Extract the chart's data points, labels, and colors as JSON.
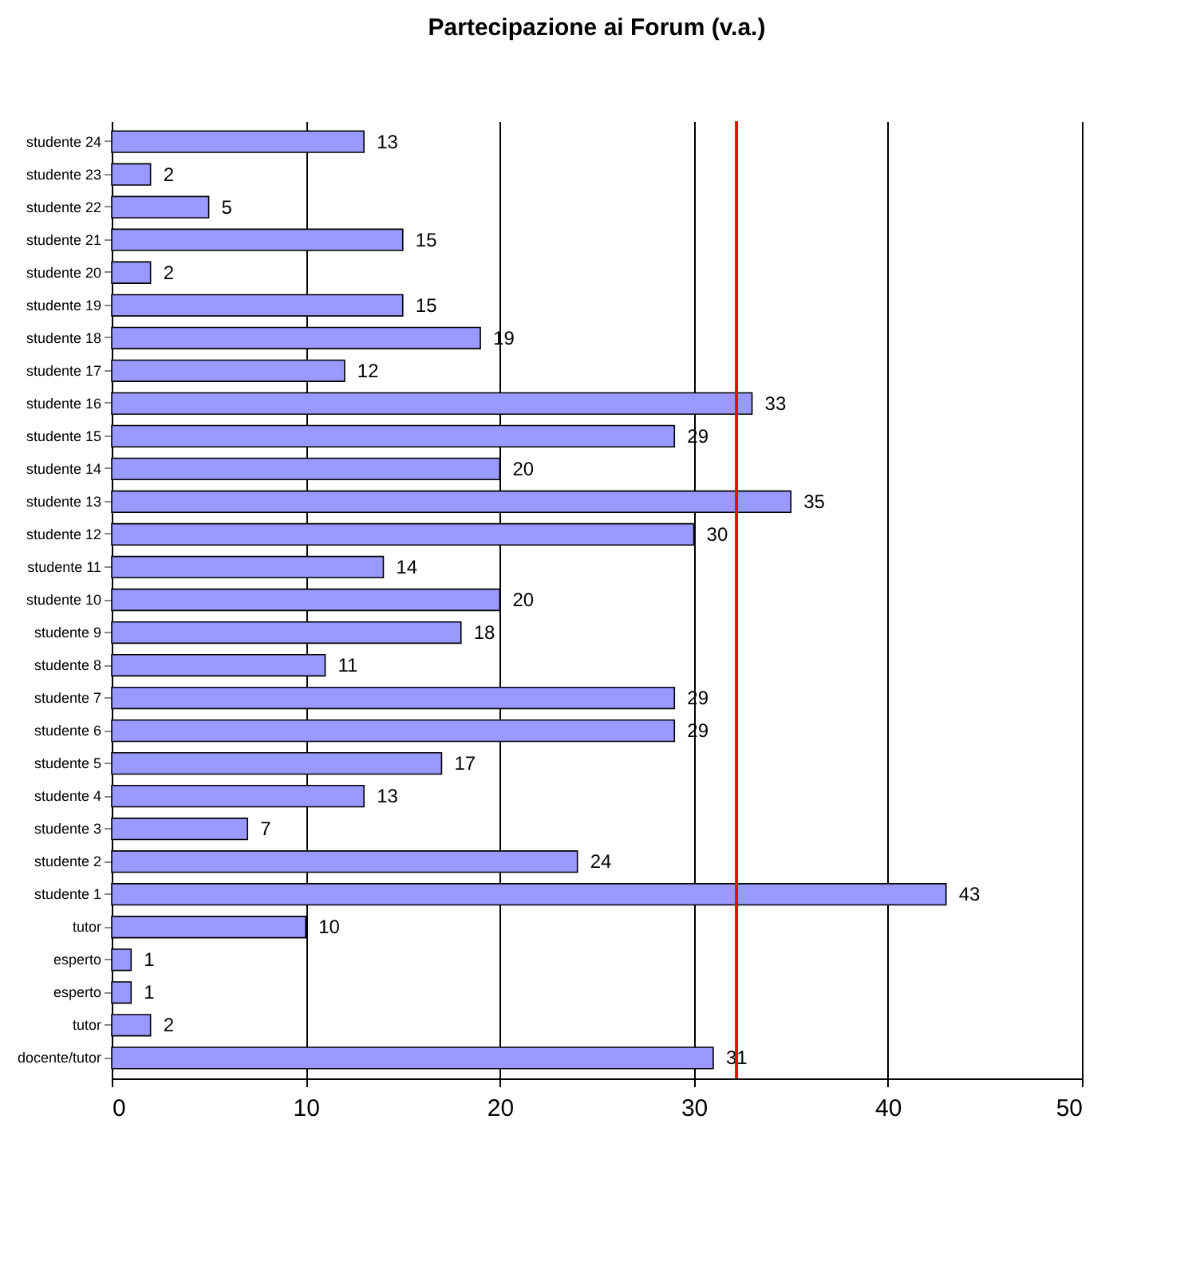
{
  "chart_data": {
    "type": "bar",
    "orientation": "horizontal",
    "title": "Partecipazione ai Forum (v.a.)",
    "categories": [
      "studente 24",
      "studente 23",
      "studente 22",
      "studente 21",
      "studente 20",
      "studente 19",
      "studente 18",
      "studente 17",
      "studente 16",
      "studente 15",
      "studente 14",
      "studente 13",
      "studente 12",
      "studente 11",
      "studente 10",
      "studente 9",
      "studente 8",
      "studente 7",
      "studente 6",
      "studente 5",
      "studente 4",
      "studente 3",
      "studente 2",
      "studente 1",
      "tutor",
      "esperto",
      "esperto",
      "tutor",
      "docente/tutor"
    ],
    "values": [
      13,
      2,
      5,
      15,
      2,
      15,
      19,
      12,
      33,
      29,
      20,
      35,
      30,
      14,
      20,
      18,
      11,
      29,
      29,
      17,
      13,
      7,
      24,
      43,
      10,
      1,
      1,
      2,
      31
    ],
    "color": "#9999ff",
    "xlim": [
      0,
      50
    ],
    "xticks": [
      0,
      10,
      20,
      30,
      40,
      50
    ],
    "grid": "x",
    "data_labels": true,
    "ref_lines": [
      {
        "axis": "x",
        "value": 32.2,
        "color": "#ff0000"
      }
    ]
  }
}
